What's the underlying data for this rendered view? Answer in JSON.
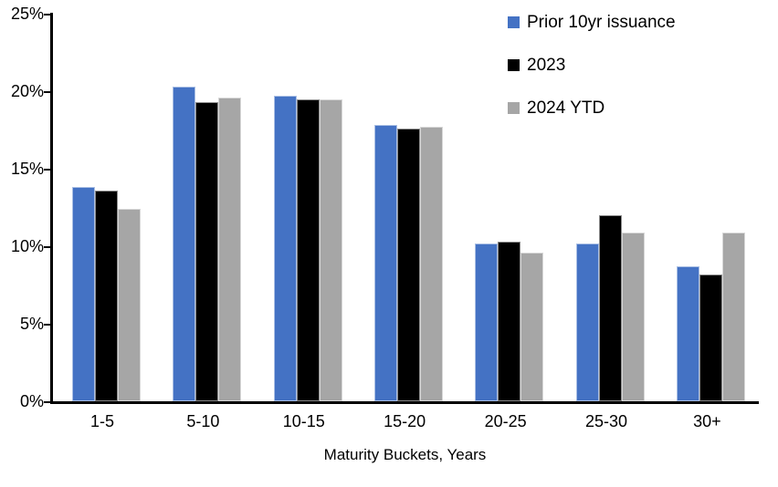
{
  "chart_data": {
    "type": "bar",
    "title": "",
    "xlabel": "Maturity Buckets, Years",
    "ylabel": "",
    "categories": [
      "1-5",
      "5-10",
      "10-15",
      "15-20",
      "20-25",
      "25-30",
      "30+"
    ],
    "series": [
      {
        "name": "Prior 10yr issuance",
        "color": "#4472C4",
        "values": [
          13.8,
          20.3,
          19.7,
          17.8,
          10.2,
          10.2,
          8.7
        ]
      },
      {
        "name": "2023",
        "color": "#000000",
        "values": [
          13.6,
          19.3,
          19.5,
          17.6,
          10.3,
          12.0,
          8.2
        ]
      },
      {
        "name": "2024 YTD",
        "color": "#A6A6A6",
        "values": [
          12.4,
          19.6,
          19.5,
          17.7,
          9.6,
          10.9,
          10.9
        ]
      }
    ],
    "ylim": [
      0,
      25
    ],
    "ytick_step": 5,
    "ytick_labels": [
      "0%",
      "5%",
      "10%",
      "15%",
      "20%",
      "25%"
    ],
    "grid": false,
    "legend_position": "top-right",
    "axis_color": "#000000",
    "background_color": "#ffffff"
  }
}
